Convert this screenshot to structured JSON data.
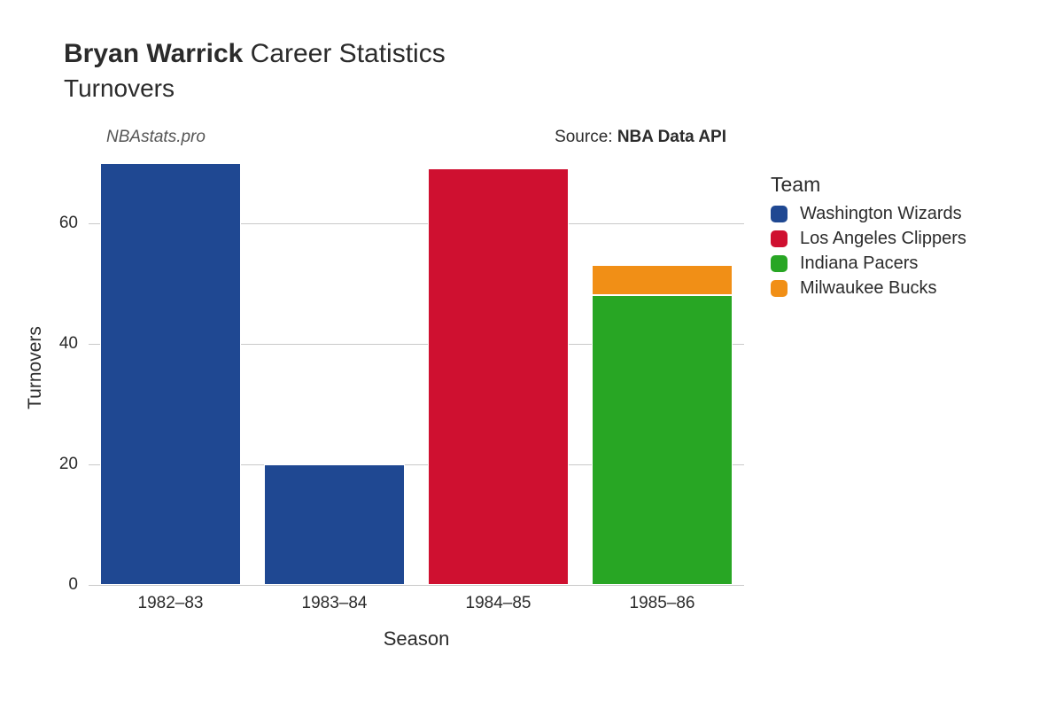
{
  "title": {
    "bold": "Bryan Warrick",
    "rest": " Career Statistics",
    "subtitle": "Turnovers"
  },
  "watermark": "NBAstats.pro",
  "source_label": "Source: ",
  "source_value": "NBA Data API",
  "xlabel": "Season",
  "ylabel": "Turnovers",
  "chart": {
    "type": "stacked-bar",
    "background_color": "#ffffff",
    "grid_color": "#c9c9c9",
    "text_color": "#2b2b2b",
    "ylim": [
      0,
      72
    ],
    "yticks": [
      0,
      20,
      40,
      60
    ],
    "bar_width_ratio": 0.86,
    "categories": [
      "1982–83",
      "1983–84",
      "1984–85",
      "1985–86"
    ],
    "series": [
      {
        "name": "Washington Wizards",
        "color": "#1f4892",
        "values": [
          70,
          20,
          0,
          0
        ]
      },
      {
        "name": "Los Angeles Clippers",
        "color": "#cf1030",
        "values": [
          0,
          0,
          69,
          0
        ]
      },
      {
        "name": "Indiana Pacers",
        "color": "#28a624",
        "values": [
          0,
          0,
          0,
          48
        ]
      },
      {
        "name": "Milwaukee Bucks",
        "color": "#f18f16",
        "values": [
          0,
          0,
          0,
          5
        ]
      }
    ]
  },
  "legend": {
    "title": "Team"
  },
  "fontsizes": {
    "title": 30,
    "subtitle": 28,
    "axis_label": 22,
    "tick": 19,
    "legend_title": 23,
    "legend_item": 20
  }
}
